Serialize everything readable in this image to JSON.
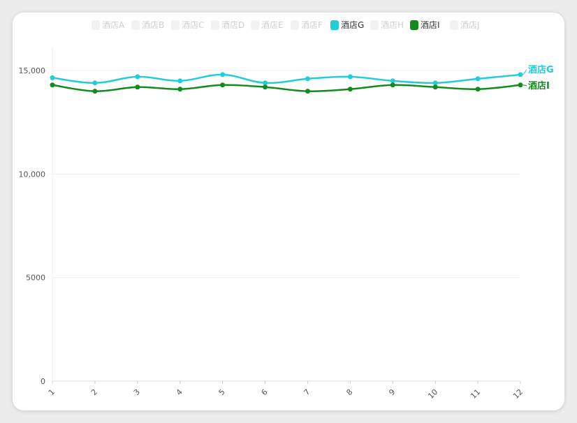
{
  "chart_data": {
    "type": "line",
    "title": "",
    "xlabel": "",
    "ylabel": "",
    "x": [
      1,
      2,
      3,
      4,
      5,
      6,
      7,
      8,
      9,
      10,
      11,
      12
    ],
    "ylim": [
      0,
      16000
    ],
    "yticks": [
      0,
      5000,
      10000,
      15000
    ],
    "ytick_labels": [
      "0",
      "5000",
      "10,000",
      "15,000"
    ],
    "grid": "horizontal",
    "legend_position": "top",
    "legend": [
      {
        "name": "酒店A",
        "active": false,
        "color": "#eeeeee"
      },
      {
        "name": "酒店B",
        "active": false,
        "color": "#eeeeee"
      },
      {
        "name": "酒店C",
        "active": false,
        "color": "#eeeeee"
      },
      {
        "name": "酒店D",
        "active": false,
        "color": "#eeeeee"
      },
      {
        "name": "酒店E",
        "active": false,
        "color": "#eeeeee"
      },
      {
        "name": "酒店F",
        "active": false,
        "color": "#eeeeee"
      },
      {
        "name": "酒店G",
        "active": true,
        "color": "#22ccd9"
      },
      {
        "name": "酒店H",
        "active": false,
        "color": "#eeeeee"
      },
      {
        "name": "酒店I",
        "active": true,
        "color": "#138a1e"
      },
      {
        "name": "酒店J",
        "active": false,
        "color": "#eeeeee"
      }
    ],
    "series": [
      {
        "name": "酒店G",
        "color": "#22ccd9",
        "values": [
          14650,
          14400,
          14700,
          14500,
          14800,
          14400,
          14600,
          14700,
          14500,
          14400,
          14600,
          14800
        ]
      },
      {
        "name": "酒店I",
        "color": "#138a1e",
        "values": [
          14300,
          14000,
          14200,
          14100,
          14300,
          14200,
          14000,
          14100,
          14300,
          14200,
          14100,
          14300
        ]
      }
    ]
  }
}
